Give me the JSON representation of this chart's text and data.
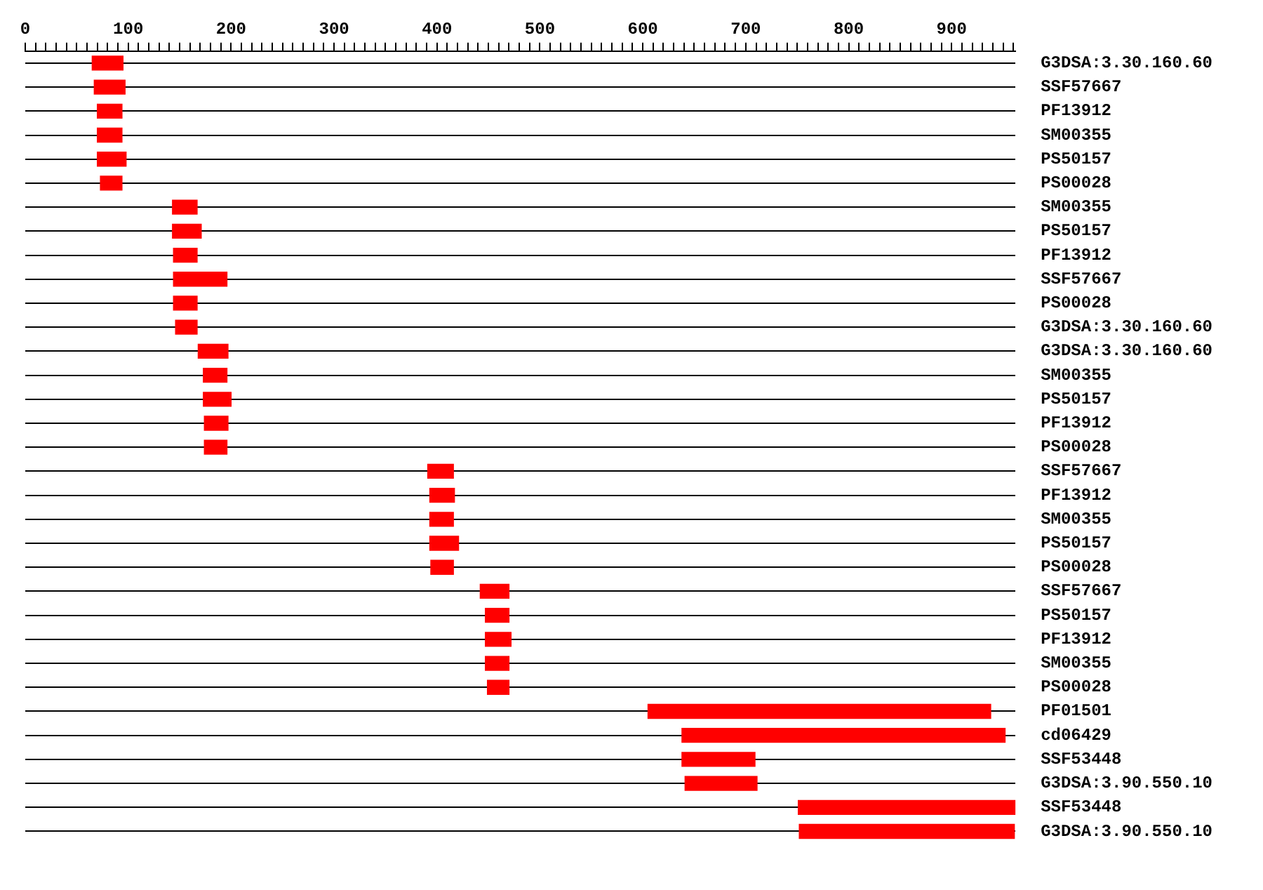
{
  "chart_data": {
    "type": "bar",
    "orientation": "horizontal",
    "grid": "y",
    "legend": false,
    "categories": [
      "G3DSA:3.30.160.60",
      "SSF57667",
      "PF13912",
      "SM00355",
      "PS50157",
      "PS00028",
      "SM00355",
      "PS50157",
      "PF13912",
      "SSF57667",
      "PS00028",
      "G3DSA:3.30.160.60",
      "G3DSA:3.30.160.60",
      "SM00355",
      "PS50157",
      "PF13912",
      "PS00028",
      "SSF57667",
      "PF13912",
      "SM00355",
      "PS50157",
      "PS00028",
      "SSF57667",
      "PS50157",
      "PF13912",
      "SM00355",
      "PS00028",
      "PF01501",
      "cd06429",
      "SSF53448",
      "G3DSA:3.90.550.10",
      "SSF53448",
      "G3DSA:3.90.550.10"
    ],
    "base": [
      65,
      67,
      70,
      70,
      70,
      73,
      143,
      143,
      144,
      144,
      144,
      146,
      168,
      173,
      173,
      174,
      174,
      391,
      393,
      393,
      393,
      394,
      442,
      447,
      447,
      447,
      449,
      605,
      638,
      638,
      641,
      751,
      752
    ],
    "values": [
      30,
      30,
      24,
      24,
      28,
      21,
      24,
      28,
      23,
      52,
      23,
      21,
      29,
      23,
      27,
      23,
      22,
      25,
      24,
      23,
      28,
      22,
      28,
      23,
      25,
      23,
      21,
      333,
      314,
      71,
      70,
      211,
      209
    ],
    "color": "#ff0000",
    "xlim": [
      0,
      962
    ],
    "xticks": [
      0,
      {
        "value": 10,
        "label": null
      },
      {
        "value": 20,
        "label": null
      },
      {
        "value": 30,
        "label": null
      },
      {
        "value": 40,
        "label": null
      },
      {
        "value": 50,
        "label": null
      },
      {
        "value": 60,
        "label": null
      },
      {
        "value": 70,
        "label": null
      },
      {
        "value": 80,
        "label": null
      },
      {
        "value": 90,
        "label": null
      },
      100,
      {
        "value": 110,
        "label": null
      },
      {
        "value": 120,
        "label": null
      },
      {
        "value": 130,
        "label": null
      },
      {
        "value": 140,
        "label": null
      },
      {
        "value": 150,
        "label": null
      },
      {
        "value": 160,
        "label": null
      },
      {
        "value": 170,
        "label": null
      },
      {
        "value": 180,
        "label": null
      },
      {
        "value": 190,
        "label": null
      },
      200,
      {
        "value": 210,
        "label": null
      },
      {
        "value": 220,
        "label": null
      },
      {
        "value": 230,
        "label": null
      },
      {
        "value": 240,
        "label": null
      },
      {
        "value": 250,
        "label": null
      },
      {
        "value": 260,
        "label": null
      },
      {
        "value": 270,
        "label": null
      },
      {
        "value": 280,
        "label": null
      },
      {
        "value": 290,
        "label": null
      },
      300,
      {
        "value": 310,
        "label": null
      },
      {
        "value": 320,
        "label": null
      },
      {
        "value": 330,
        "label": null
      },
      {
        "value": 340,
        "label": null
      },
      {
        "value": 350,
        "label": null
      },
      {
        "value": 360,
        "label": null
      },
      {
        "value": 370,
        "label": null
      },
      {
        "value": 380,
        "label": null
      },
      {
        "value": 390,
        "label": null
      },
      400,
      {
        "value": 410,
        "label": null
      },
      {
        "value": 420,
        "label": null
      },
      {
        "value": 430,
        "label": null
      },
      {
        "value": 440,
        "label": null
      },
      {
        "value": 450,
        "label": null
      },
      {
        "value": 460,
        "label": null
      },
      {
        "value": 470,
        "label": null
      },
      {
        "value": 480,
        "label": null
      },
      {
        "value": 490,
        "label": null
      },
      500,
      {
        "value": 510,
        "label": null
      },
      {
        "value": 520,
        "label": null
      },
      {
        "value": 530,
        "label": null
      },
      {
        "value": 540,
        "label": null
      },
      {
        "value": 550,
        "label": null
      },
      {
        "value": 560,
        "label": null
      },
      {
        "value": 570,
        "label": null
      },
      {
        "value": 580,
        "label": null
      },
      {
        "value": 590,
        "label": null
      },
      600,
      {
        "value": 610,
        "label": null
      },
      {
        "value": 620,
        "label": null
      },
      {
        "value": 630,
        "label": null
      },
      {
        "value": 640,
        "label": null
      },
      {
        "value": 650,
        "label": null
      },
      {
        "value": 660,
        "label": null
      },
      {
        "value": 670,
        "label": null
      },
      {
        "value": 680,
        "label": null
      },
      {
        "value": 690,
        "label": null
      },
      700,
      {
        "value": 710,
        "label": null
      },
      {
        "value": 720,
        "label": null
      },
      {
        "value": 730,
        "label": null
      },
      {
        "value": 740,
        "label": null
      },
      {
        "value": 750,
        "label": null
      },
      {
        "value": 760,
        "label": null
      },
      {
        "value": 770,
        "label": null
      },
      {
        "value": 780,
        "label": null
      },
      {
        "value": 790,
        "label": null
      },
      800,
      {
        "value": 810,
        "label": null
      },
      {
        "value": 820,
        "label": null
      },
      {
        "value": 830,
        "label": null
      },
      {
        "value": 840,
        "label": null
      },
      {
        "value": 850,
        "label": null
      },
      {
        "value": 860,
        "label": null
      },
      {
        "value": 870,
        "label": null
      },
      {
        "value": 880,
        "label": null
      },
      {
        "value": 890,
        "label": null
      },
      900,
      {
        "value": 910,
        "label": null
      },
      {
        "value": 920,
        "label": null
      },
      {
        "value": 930,
        "label": null
      },
      {
        "value": 940,
        "label": null
      },
      {
        "value": 950,
        "label": null
      },
      {
        "value": 960,
        "label": null
      }
    ]
  }
}
